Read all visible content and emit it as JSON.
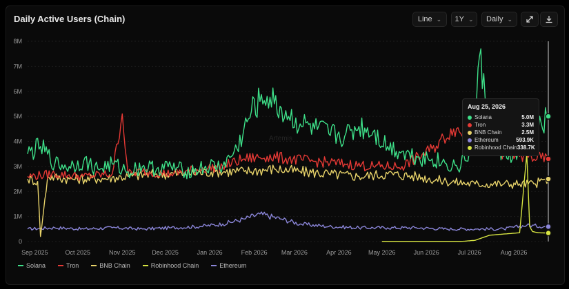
{
  "header": {
    "title": "Daily Active Users (Chain)",
    "chart_type_select": "Line",
    "range_select": "1Y",
    "interval_select": "Daily"
  },
  "watermark": "Artemis",
  "colors": {
    "solana": "#3ee089",
    "tron": "#e53935",
    "bnb": "#e8d36a",
    "robinhood": "#d7e542",
    "ethereum": "#8b86d9"
  },
  "tooltip": {
    "date": "Aug 25, 2026",
    "rows": [
      {
        "name": "Solana",
        "value": "5.0M",
        "color": "#3ee089"
      },
      {
        "name": "Tron",
        "value": "3.3M",
        "color": "#e53935"
      },
      {
        "name": "BNB Chain",
        "value": "2.5M",
        "color": "#e8d36a"
      },
      {
        "name": "Ethereum",
        "value": "593.9K",
        "color": "#8b86d9"
      },
      {
        "name": "Robinhood Chain",
        "value": "338.7K",
        "color": "#d7e542"
      }
    ]
  },
  "chart_data": {
    "type": "line",
    "title": "Daily Active Users (Chain)",
    "ylim": [
      0,
      8000000
    ],
    "yticks": [
      0,
      1000000,
      2000000,
      3000000,
      4000000,
      5000000,
      6000000,
      7000000,
      8000000
    ],
    "ytick_labels": [
      "0",
      "1M",
      "2M",
      "3M",
      "4M",
      "5M",
      "6M",
      "7M",
      "8M"
    ],
    "x_start": "2025-08-27",
    "x_end": "2026-08-25",
    "xticks": [
      "2025-09-01",
      "2025-10-01",
      "2025-11-01",
      "2025-12-01",
      "2026-01-01",
      "2026-02-01",
      "2026-03-01",
      "2026-04-01",
      "2026-05-01",
      "2026-06-01",
      "2026-07-01",
      "2026-08-01"
    ],
    "xtick_labels": [
      "Sep 2025",
      "Oct 2025",
      "Nov 2025",
      "Dec 2025",
      "Jan 2026",
      "Feb 2026",
      "Mar 2026",
      "Apr 2026",
      "May 2026",
      "Jun 2026",
      "Jul 2026",
      "Aug 2026"
    ],
    "legend": [
      "Solana",
      "Tron",
      "BNB Chain",
      "Robinhood Chain",
      "Ethereum"
    ],
    "legend_placement": "bottom-left",
    "grid": "horizontal",
    "series": [
      {
        "name": "Solana",
        "color": "#3ee089",
        "x": [
          "2025-08-27",
          "2025-09-05",
          "2025-09-15",
          "2025-09-25",
          "2025-10-05",
          "2025-10-15",
          "2025-10-25",
          "2025-11-05",
          "2025-11-15",
          "2025-11-25",
          "2025-12-05",
          "2025-12-15",
          "2025-12-25",
          "2026-01-01",
          "2026-01-10",
          "2026-01-20",
          "2026-01-30",
          "2026-02-05",
          "2026-02-10",
          "2026-02-15",
          "2026-02-25",
          "2026-03-05",
          "2026-03-15",
          "2026-03-25",
          "2026-04-05",
          "2026-04-15",
          "2026-04-25",
          "2026-05-05",
          "2026-05-15",
          "2026-05-25",
          "2026-06-05",
          "2026-06-15",
          "2026-06-25",
          "2026-07-01",
          "2026-07-05",
          "2026-07-08",
          "2026-07-15",
          "2026-07-25",
          "2026-08-05",
          "2026-08-15",
          "2026-08-25"
        ],
        "y": [
          3500000,
          3800000,
          3100000,
          3000000,
          3200000,
          2900000,
          3100000,
          2800000,
          3000000,
          2900000,
          3000000,
          2800000,
          2900000,
          3000000,
          3000000,
          3700000,
          5200000,
          5600000,
          5800000,
          5500000,
          5000000,
          4700000,
          4500000,
          4300000,
          4200000,
          4600000,
          4400000,
          3800000,
          3600000,
          3400000,
          3300000,
          3100000,
          3000000,
          3600000,
          4800000,
          7400000,
          4600000,
          3400000,
          3500000,
          4200000,
          5000000
        ]
      },
      {
        "name": "Tron",
        "color": "#e53935",
        "x": [
          "2025-08-27",
          "2025-09-15",
          "2025-10-05",
          "2025-10-25",
          "2025-11-01",
          "2025-11-05",
          "2025-11-15",
          "2025-12-05",
          "2025-12-25",
          "2026-01-10",
          "2026-01-25",
          "2026-02-10",
          "2026-02-25",
          "2026-03-15",
          "2026-04-05",
          "2026-04-25",
          "2026-05-15",
          "2026-06-05",
          "2026-06-20",
          "2026-07-05",
          "2026-07-20",
          "2026-08-05",
          "2026-08-25"
        ],
        "y": [
          2600000,
          2700000,
          2600000,
          2700000,
          5100000,
          2700000,
          2800000,
          2700000,
          2900000,
          3000000,
          3300000,
          3400000,
          3300000,
          3200000,
          3100000,
          3000000,
          3000000,
          3700000,
          4500000,
          4200000,
          3600000,
          3400000,
          3300000
        ]
      },
      {
        "name": "BNB Chain",
        "color": "#e8d36a",
        "x": [
          "2025-08-27",
          "2025-09-03",
          "2025-09-05",
          "2025-09-10",
          "2025-09-25",
          "2025-10-15",
          "2025-11-05",
          "2025-11-25",
          "2025-12-15",
          "2026-01-05",
          "2026-01-25",
          "2026-02-15",
          "2026-03-05",
          "2026-03-25",
          "2026-04-15",
          "2026-05-05",
          "2026-05-25",
          "2026-06-15",
          "2026-07-05",
          "2026-07-25",
          "2026-08-05",
          "2026-08-15",
          "2026-08-25"
        ],
        "y": [
          2500000,
          2400000,
          200000,
          2600000,
          2500000,
          2500000,
          2600000,
          2700000,
          2700000,
          2800000,
          2800000,
          2900000,
          2800000,
          2700000,
          2600000,
          2700000,
          2600000,
          2400000,
          2300000,
          2300000,
          2300000,
          2300000,
          2500000
        ]
      },
      {
        "name": "Robinhood Chain",
        "color": "#d7e542",
        "x": [
          "2026-05-01",
          "2026-06-01",
          "2026-06-25",
          "2026-07-05",
          "2026-07-15",
          "2026-07-25",
          "2026-08-05",
          "2026-08-10",
          "2026-08-12",
          "2026-08-14",
          "2026-08-18",
          "2026-08-25"
        ],
        "y": [
          0,
          0,
          0,
          50000,
          250000,
          300000,
          350000,
          3500000,
          600000,
          400000,
          350000,
          338700
        ]
      },
      {
        "name": "Ethereum",
        "color": "#8b86d9",
        "x": [
          "2025-08-27",
          "2025-09-15",
          "2025-10-05",
          "2025-10-25",
          "2025-11-15",
          "2025-12-05",
          "2025-12-25",
          "2026-01-10",
          "2026-01-25",
          "2026-02-05",
          "2026-02-20",
          "2026-03-05",
          "2026-03-25",
          "2026-04-15",
          "2026-05-05",
          "2026-05-25",
          "2026-06-15",
          "2026-07-05",
          "2026-07-25",
          "2026-08-10",
          "2026-08-25"
        ],
        "y": [
          500000,
          550000,
          500000,
          550000,
          500000,
          550000,
          600000,
          700000,
          900000,
          1100000,
          900000,
          700000,
          600000,
          550000,
          550000,
          550000,
          500000,
          500000,
          500000,
          650000,
          593900
        ]
      }
    ]
  }
}
